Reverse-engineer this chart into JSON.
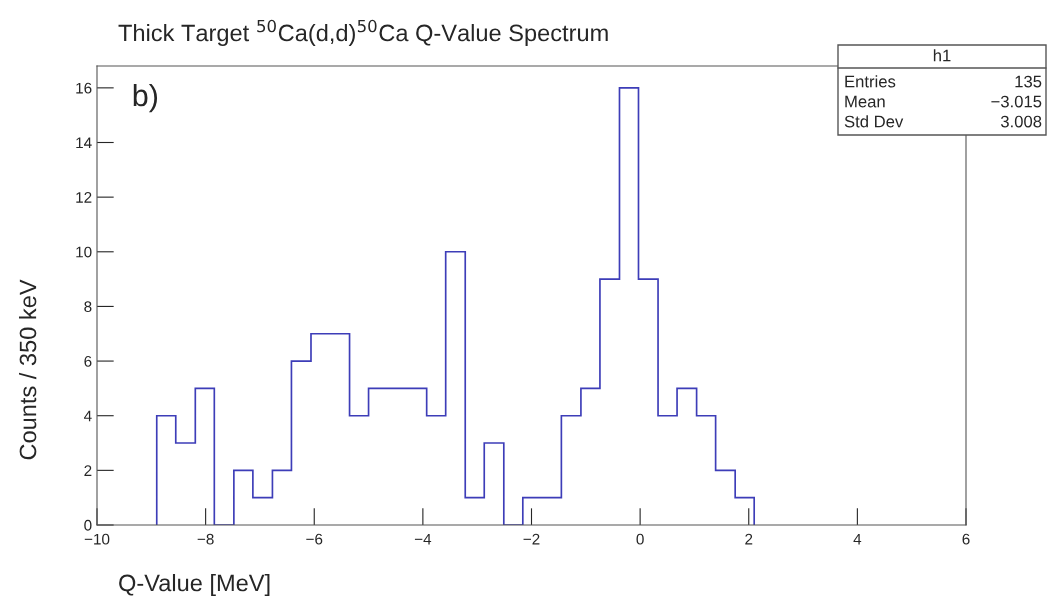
{
  "chart_data": {
    "type": "histogram",
    "title": "Thick Target $^{50}$Ca(d,d)$^{50}$Ca Q-Value Spectrum",
    "xlabel": "Q-Value [MeV]",
    "ylabel": "Counts / 350 keV",
    "bins": [
      -8.9,
      -8.55,
      -8.19,
      -7.84,
      -7.48,
      -7.13,
      -6.77,
      -6.42,
      -6.06,
      -5.71,
      -5.35,
      -5.0,
      -4.64,
      -4.29,
      -3.93,
      -3.58,
      -3.22,
      -2.87,
      -2.51,
      -2.16,
      -1.8,
      -1.45,
      -1.09,
      -0.74,
      -0.38,
      -0.03,
      0.33,
      0.68,
      1.04,
      1.39,
      1.75,
      2.1
    ],
    "values": [
      4,
      3,
      5,
      0,
      2,
      1,
      2,
      6,
      7,
      7,
      4,
      5,
      5,
      5,
      4,
      10,
      1,
      3,
      0,
      1,
      1,
      4,
      5,
      9,
      16,
      9,
      4,
      5,
      4,
      2,
      1
    ],
    "color": "#3d3db8",
    "xlim": [
      -10,
      6
    ],
    "xticks": [
      {
        "value": -10,
        "label": "−10"
      },
      {
        "value": -8,
        "label": "−8"
      },
      {
        "value": -6,
        "label": "−6"
      },
      {
        "value": -4,
        "label": "−4"
      },
      {
        "value": -2,
        "label": "−2"
      },
      0,
      2,
      4,
      6
    ],
    "ylim": [
      0,
      16.8
    ],
    "yticks": [
      0,
      2,
      4,
      6,
      8,
      10,
      12,
      14,
      16
    ],
    "grid": false,
    "legend": false,
    "annotations": [
      "b)",
      "h1",
      "Entries",
      "135",
      "Mean",
      "−3.015",
      "Std Dev",
      "3.008"
    ]
  }
}
